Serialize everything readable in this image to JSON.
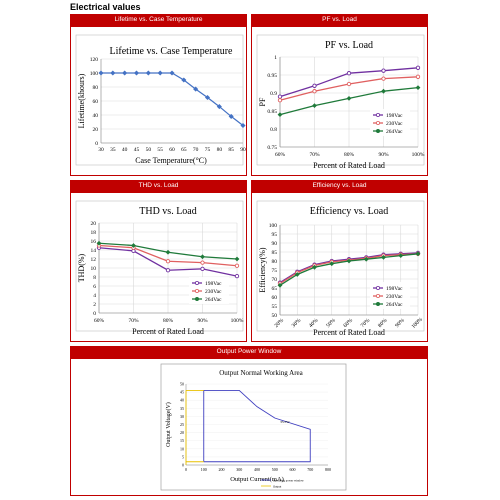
{
  "page": {
    "section_title": "Electrical values",
    "headers": {
      "lifetime": "Lifetime vs. Case Temperature",
      "pf": "PF vs. Load",
      "thd": "THD vs. Load",
      "efficiency": "Efficiency vs. Load",
      "power_window": "Output Power Window"
    }
  },
  "colors": {
    "header_bg": "#c00000",
    "lifetime_line": "#4472c4",
    "v198": "#7030a0",
    "v230": "#e06060",
    "v264": "#1f7a3a",
    "window_blue": "#4040c0",
    "window_yellow": "#e8c000"
  },
  "chart_data": [
    {
      "id": "lifetime",
      "type": "line",
      "title": "Lifetime vs. Case Temperature",
      "xlabel": "Case Temperature(°C)",
      "ylabel": "Lifetime(khours)",
      "x": [
        30,
        35,
        40,
        45,
        50,
        55,
        60,
        65,
        70,
        75,
        80,
        85,
        90
      ],
      "x_ticks": [
        "30",
        "35",
        "40",
        "45",
        "50",
        "55",
        "60",
        "65",
        "70",
        "75",
        "80",
        "85",
        "90"
      ],
      "y_ticks": [
        "0",
        "20",
        "40",
        "60",
        "80",
        "100",
        "120"
      ],
      "ylim": [
        0,
        120
      ],
      "series": [
        {
          "values": [
            100,
            100,
            100,
            100,
            100,
            100,
            100,
            90,
            77,
            65,
            52,
            38,
            25
          ]
        }
      ],
      "grid": true
    },
    {
      "id": "pf",
      "type": "line",
      "title": "PF vs. Load",
      "xlabel": "Percent of Rated Load",
      "ylabel": "PF",
      "categories": [
        "60%",
        "70%",
        "80%",
        "90%",
        "100%"
      ],
      "y_ticks": [
        "0.75",
        "0.8",
        "0.85",
        "0.9",
        "0.95",
        "1"
      ],
      "ylim": [
        0.75,
        1.0
      ],
      "legend": "bottom-right",
      "series": [
        {
          "name": "198Vac",
          "values": [
            0.89,
            0.92,
            0.955,
            0.962,
            0.97
          ]
        },
        {
          "name": "230Vac",
          "values": [
            0.88,
            0.905,
            0.925,
            0.94,
            0.945
          ]
        },
        {
          "name": "264Vac",
          "values": [
            0.84,
            0.865,
            0.885,
            0.905,
            0.915
          ]
        }
      ],
      "grid": true
    },
    {
      "id": "thd",
      "type": "line",
      "title": "THD vs. Load",
      "xlabel": "Percent of Rated Load",
      "ylabel": "THD(%)",
      "categories": [
        "60%",
        "70%",
        "80%",
        "90%",
        "100%"
      ],
      "y_ticks": [
        "0",
        "2",
        "4",
        "6",
        "8",
        "10",
        "12",
        "14",
        "16",
        "18",
        "20"
      ],
      "ylim": [
        0,
        20
      ],
      "legend": "bottom-right",
      "series": [
        {
          "name": "198Vac",
          "values": [
            14.5,
            13.8,
            9.5,
            9.8,
            8.2
          ]
        },
        {
          "name": "230Vac",
          "values": [
            15.0,
            14.5,
            11.5,
            11.2,
            10.5
          ]
        },
        {
          "name": "264Vac",
          "values": [
            15.5,
            15.0,
            13.5,
            12.5,
            12.0
          ]
        }
      ],
      "grid": true
    },
    {
      "id": "efficiency",
      "type": "line",
      "title": "Efficiency vs. Load",
      "xlabel": "Percent of Rated Load",
      "ylabel": "Efficiency(%)",
      "categories": [
        "20%",
        "30%",
        "40%",
        "50%",
        "60%",
        "70%",
        "80%",
        "90%",
        "100%"
      ],
      "y_ticks": [
        "50",
        "55",
        "60",
        "65",
        "70",
        "75",
        "80",
        "85",
        "90",
        "95",
        "100"
      ],
      "ylim": [
        50,
        100
      ],
      "legend": "bottom-right",
      "series": [
        {
          "name": "198Vac",
          "values": [
            68,
            74,
            78,
            80,
            81,
            82,
            83.5,
            84,
            84.5
          ]
        },
        {
          "name": "230Vac",
          "values": [
            67.5,
            73.5,
            77.5,
            79.5,
            80.5,
            81.5,
            83,
            83.5,
            84
          ]
        },
        {
          "name": "264Vac",
          "values": [
            66.5,
            72.5,
            76.5,
            78.5,
            80,
            81,
            82,
            83,
            84
          ]
        }
      ],
      "grid": true
    },
    {
      "id": "power_window",
      "type": "line",
      "title": "Output Normal Working Area",
      "xlabel": "Output Current(mA)",
      "ylabel": "Output Voltage(V)",
      "x_ticks": [
        "0",
        "100",
        "200",
        "300",
        "400",
        "500",
        "600",
        "700",
        "800"
      ],
      "y_ticks": [
        "0",
        "5",
        "10",
        "15",
        "20",
        "25",
        "30",
        "35",
        "40",
        "45",
        "50"
      ],
      "xlim": [
        0,
        800
      ],
      "ylim": [
        0,
        50
      ],
      "series": [
        {
          "name": "Operating power window",
          "x": [
            100,
            100,
            300,
            400,
            500,
            700,
            700,
            100
          ],
          "y": [
            2,
            46,
            46,
            36,
            29,
            22,
            2,
            2
          ]
        },
        {
          "name": "Output",
          "x": [
            0,
            100
          ],
          "y": [
            46,
            46
          ]
        }
      ],
      "annotation": "35.5W",
      "legend": "bottom-right"
    }
  ]
}
